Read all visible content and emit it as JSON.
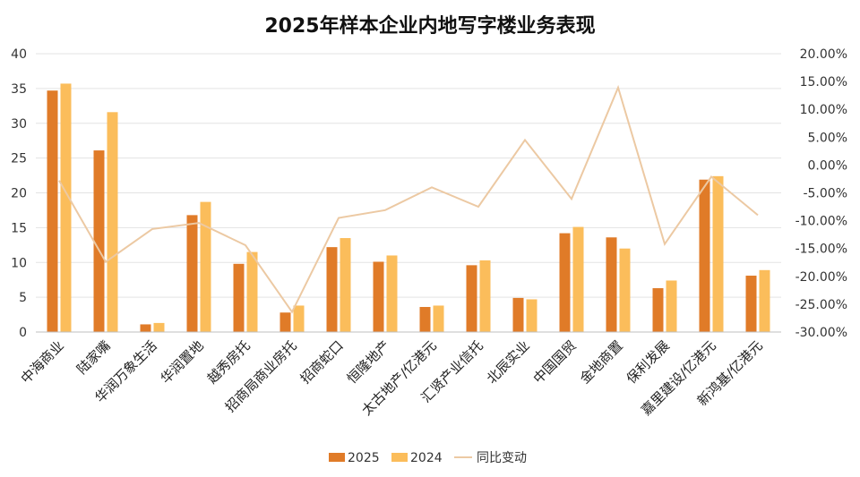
{
  "colors": {
    "bar_2025": "#e07b28",
    "bar_2024": "#fbbd5b",
    "line_yoy": "#ecc9a3",
    "grid": "#e3e3e3"
  },
  "chart_data": {
    "type": "bar",
    "title": "2025年样本企业内地写字楼业务表现",
    "categories": [
      "中海商业",
      "陆家嘴",
      "华润万象生活",
      "华润置地",
      "越秀房托",
      "招商局商业房托",
      "招商蛇口",
      "恒隆地产",
      "太古地产/亿港元",
      "汇贤产业信托",
      "北辰实业",
      "中国国贸",
      "金地商置",
      "保利发展",
      "嘉里建设/亿港元",
      "新鸿基/亿港元"
    ],
    "series": [
      {
        "name": "2025",
        "type": "bar",
        "axis": "left",
        "values": [
          34.7,
          26.1,
          1.1,
          16.8,
          9.8,
          2.8,
          12.2,
          10.1,
          3.6,
          9.6,
          4.9,
          14.2,
          13.6,
          6.3,
          21.9,
          8.1
        ]
      },
      {
        "name": "2024",
        "type": "bar",
        "axis": "left",
        "values": [
          35.7,
          31.6,
          1.3,
          18.7,
          11.5,
          3.8,
          13.5,
          11.0,
          3.8,
          10.3,
          4.7,
          15.1,
          12.0,
          7.4,
          22.4,
          8.9
        ]
      },
      {
        "name": "同比变动",
        "type": "line",
        "axis": "right",
        "values": [
          -2.8,
          -17.4,
          -11.5,
          -10.4,
          -14.4,
          -26.4,
          -9.5,
          -8.1,
          -4.0,
          -7.5,
          4.5,
          -6.1,
          13.9,
          -14.2,
          -2.1,
          -9.0
        ]
      }
    ],
    "y_left": {
      "min": 0,
      "max": 40,
      "ticks": [
        "0",
        "5",
        "10",
        "15",
        "20",
        "25",
        "30",
        "35",
        "40"
      ]
    },
    "y_right": {
      "min": -30,
      "max": 20,
      "ticks": [
        "-30.00%",
        "-25.00%",
        "-20.00%",
        "-15.00%",
        "-10.00%",
        "-5.00%",
        "0.00%",
        "5.00%",
        "10.00%",
        "15.00%",
        "20.00%"
      ]
    },
    "grid": true,
    "legend_position": "bottom-center",
    "legend": [
      "2025",
      "2024",
      "同比变动"
    ]
  }
}
